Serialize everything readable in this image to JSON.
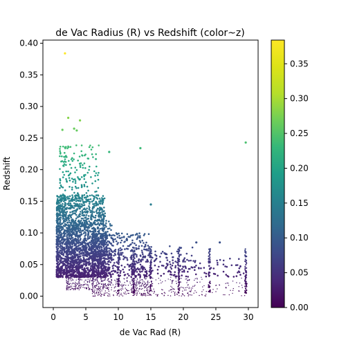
{
  "chart_data": {
    "type": "scatter",
    "title": "de Vac Radius (R) vs Redshift (color~z)",
    "xlabel": "de Vac Rad (R)",
    "ylabel": "Redshift",
    "xlim": [
      -1.6,
      31.5
    ],
    "ylim": [
      -0.018,
      0.405
    ],
    "xticks": [
      0,
      5,
      10,
      15,
      20,
      25,
      30
    ],
    "yticks": [
      0.0,
      0.05,
      0.1,
      0.15,
      0.2,
      0.25,
      0.3,
      0.35,
      0.4
    ],
    "ytick_labels": [
      "0.00",
      "0.05",
      "0.10",
      "0.15",
      "0.20",
      "0.25",
      "0.30",
      "0.35",
      "0.40"
    ],
    "colorbar": {
      "colormap": "viridis",
      "range": [
        0.0,
        0.384
      ],
      "ticks": [
        0.0,
        0.05,
        0.1,
        0.15,
        0.2,
        0.25,
        0.3,
        0.35
      ],
      "tick_labels": [
        "0.00",
        "0.05",
        "0.10",
        "0.15",
        "0.20",
        "0.25",
        "0.30",
        "0.35"
      ]
    },
    "grid": false,
    "legend": "none",
    "color_encodes": "Redshift (z)",
    "density": {
      "clusters": [
        {
          "x": [
            0.5,
            8
          ],
          "y": [
            0.03,
            0.16
          ],
          "n": 1600
        },
        {
          "x": [
            2,
            9
          ],
          "y": [
            0.01,
            0.12
          ],
          "n": 900
        },
        {
          "x": [
            6,
            15
          ],
          "y": [
            0.0,
            0.1
          ],
          "n": 700
        },
        {
          "x": [
            12,
            22
          ],
          "y": [
            0.0,
            0.08
          ],
          "n": 300
        },
        {
          "x": [
            18,
            30
          ],
          "y": [
            0.0,
            0.06
          ],
          "n": 180
        },
        {
          "x": [
            1,
            7
          ],
          "y": [
            0.15,
            0.24
          ],
          "n": 160
        }
      ],
      "column_x": [
        10,
        12.4,
        15,
        19.3,
        24,
        29.6
      ]
    },
    "outliers": [
      {
        "x": 1.8,
        "y": 0.384
      },
      {
        "x": 2.3,
        "y": 0.282
      },
      {
        "x": 3.2,
        "y": 0.265
      },
      {
        "x": 4.1,
        "y": 0.278
      },
      {
        "x": 3.6,
        "y": 0.262
      },
      {
        "x": 13.4,
        "y": 0.234
      },
      {
        "x": 29.6,
        "y": 0.243
      },
      {
        "x": 8.6,
        "y": 0.228
      },
      {
        "x": 1.4,
        "y": 0.263
      },
      {
        "x": 15.0,
        "y": 0.145
      },
      {
        "x": 22.0,
        "y": 0.085
      },
      {
        "x": 25.6,
        "y": 0.085
      }
    ]
  }
}
